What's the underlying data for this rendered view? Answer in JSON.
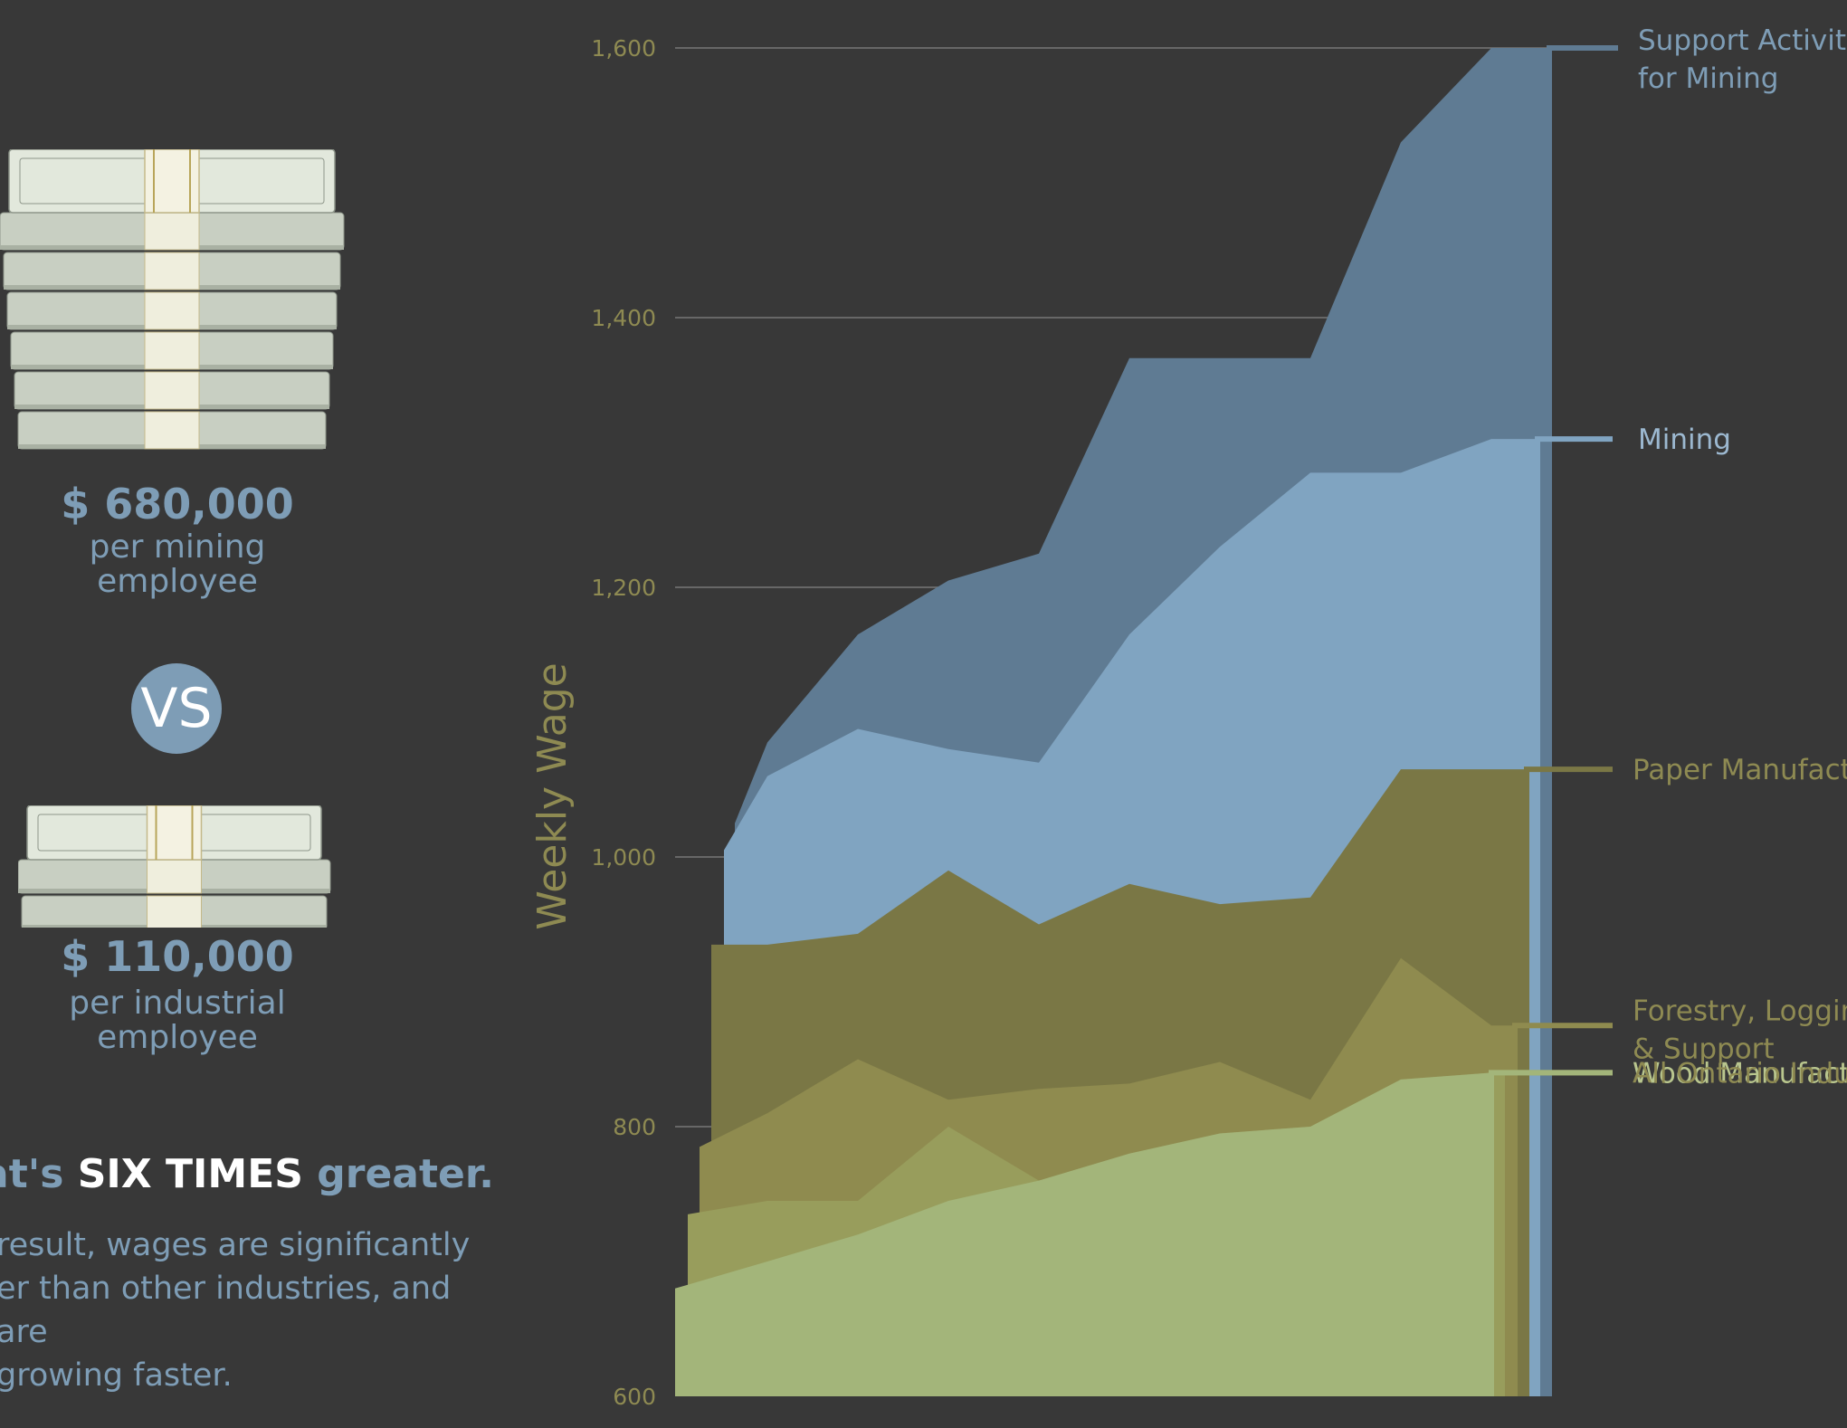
{
  "comparison": {
    "mining": {
      "amount": "$ 680,000",
      "caption_line1": "per mining",
      "caption_line2": "employee"
    },
    "vs": "VS",
    "industrial": {
      "amount": "$ 110,000",
      "caption_line1": "per industrial",
      "caption_line2": "employee"
    },
    "headline_prefix": "at's",
    "headline_emphasis": "SIX TIMES",
    "headline_suffix": "greater.",
    "body_lines": [
      "result, wages are significantly",
      "er than other industries, and are",
      "growing faster."
    ]
  },
  "colors": {
    "background": "#383838",
    "accent_blue": "#7e9db6",
    "accent_olive": "#8e8a52"
  },
  "icons": {
    "money_stack": "money-stack-icon"
  },
  "chart_data": {
    "type": "area",
    "ylabel": "Weekly Wage",
    "xlabel": "",
    "ylim": [
      600,
      1600
    ],
    "yticks": [
      600,
      800,
      1000,
      1200,
      1400,
      1600
    ],
    "ytick_labels": [
      "600",
      "800",
      "1,000",
      "1,200",
      "1,400",
      "1,600"
    ],
    "grid": true,
    "legend": "right-end labels",
    "x": [
      0,
      1,
      2,
      3,
      4,
      5,
      6,
      7,
      8,
      9,
      10
    ],
    "series": [
      {
        "name": "Support Activities for Mining",
        "label_lines": [
          "Support Activities",
          "for Mining"
        ],
        "color": "#5f7b93",
        "label_color": "#7e9db6",
        "values": [
          1025,
          1085,
          1165,
          1205,
          1225,
          1370,
          1370,
          1370,
          1530,
          1600,
          1600
        ]
      },
      {
        "name": "Mining",
        "label_lines": [
          "Mining"
        ],
        "color": "#80a4c1",
        "label_color": "#9cb8d0",
        "values": [
          1005,
          1060,
          1095,
          1080,
          1070,
          1165,
          1230,
          1285,
          1285,
          1310,
          1310
        ]
      },
      {
        "name": "Paper Manufacturing",
        "label_lines": [
          "Paper Manufacturi"
        ],
        "color": "#7a7745",
        "label_color": "#8e8a52",
        "values": [
          935,
          935,
          943,
          990,
          950,
          980,
          965,
          970,
          1065,
          1065,
          1065
        ]
      },
      {
        "name": "Forestry, Logging & Support",
        "label_lines": [
          "Forestry, Logging",
          "& Support"
        ],
        "color": "#8f8b4f",
        "label_color": "#8e8a52",
        "values": [
          785,
          810,
          850,
          820,
          828,
          832,
          848,
          820,
          925,
          875,
          875
        ]
      },
      {
        "name": "Wood Manufacturing",
        "label_lines": [
          "Wood Manufacturi"
        ],
        "color": "#989d5c",
        "label_color": "#b9c68e",
        "values": [
          735,
          745,
          745,
          800,
          760,
          780,
          795,
          800,
          835,
          840,
          840
        ]
      },
      {
        "name": "All Ontario Industries",
        "label_lines": [
          "All Ontario Industr"
        ],
        "color": "#a3b57a",
        "label_color": "#8e8a52",
        "values": [
          680,
          700,
          720,
          745,
          760,
          780,
          795,
          800,
          835,
          840,
          840
        ]
      }
    ]
  }
}
